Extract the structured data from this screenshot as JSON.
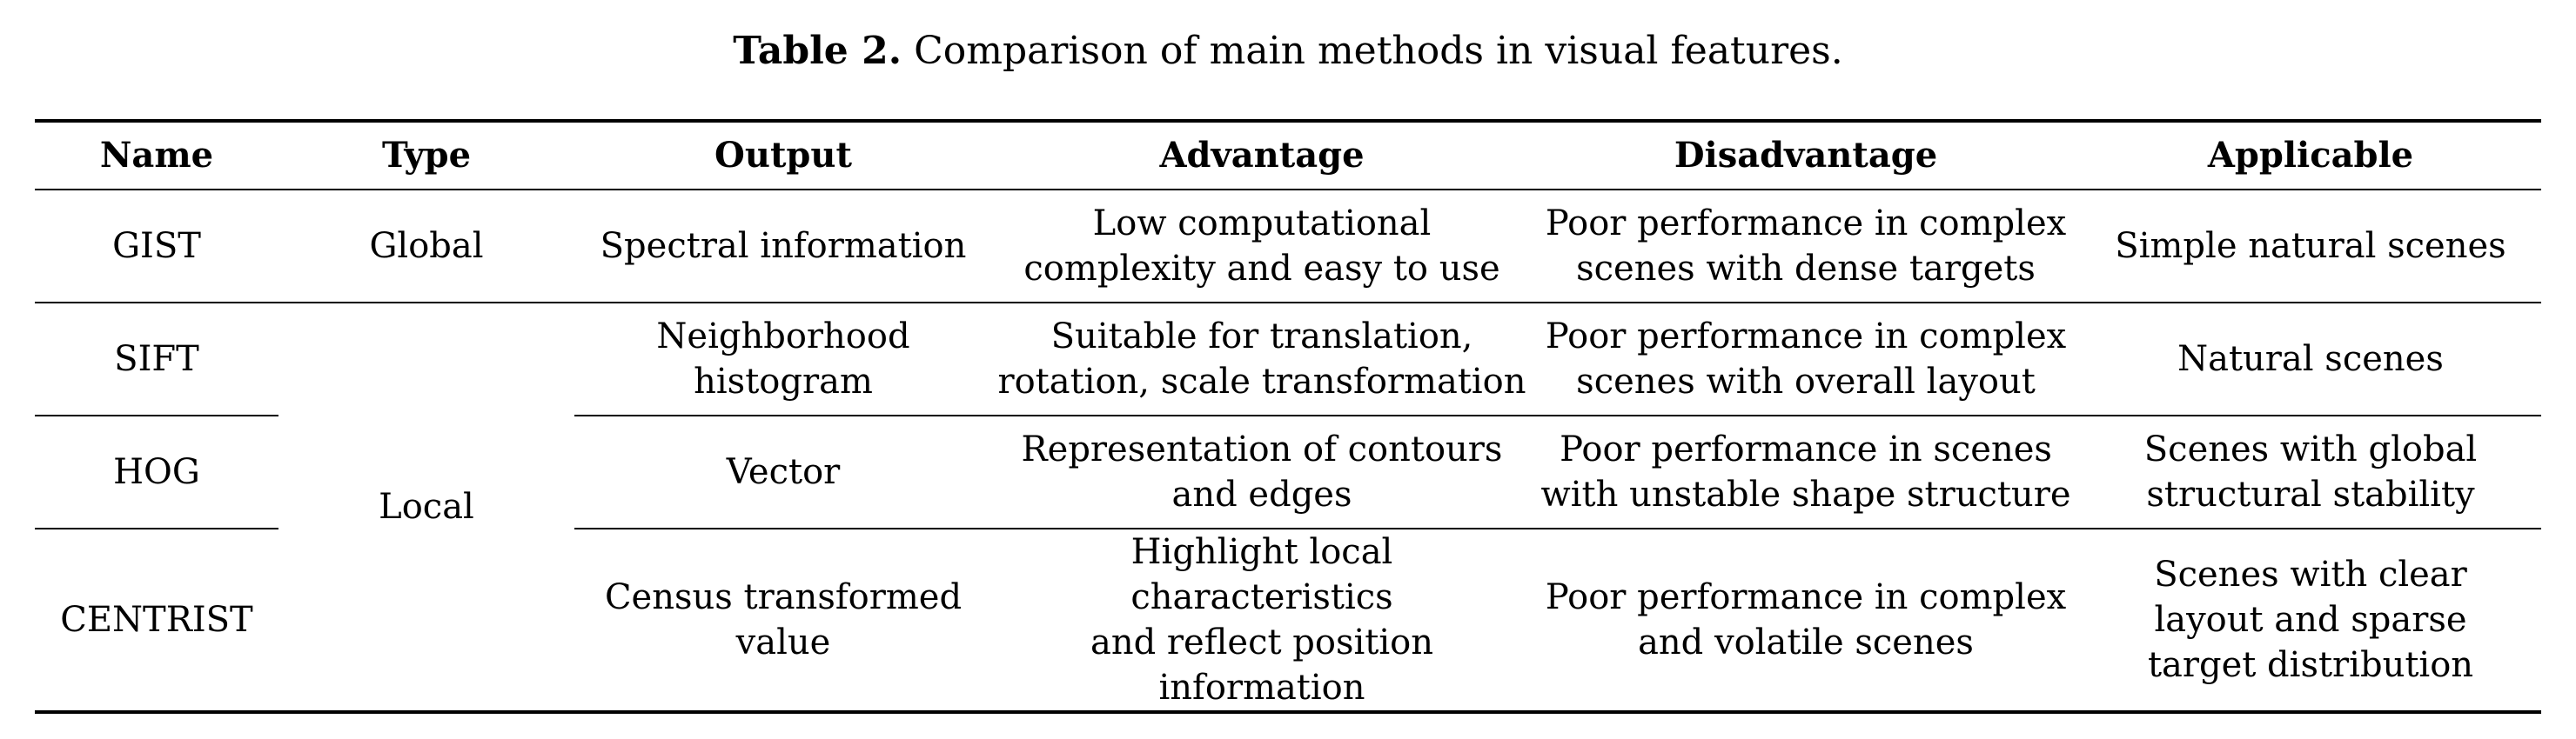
{
  "caption": {
    "label": "Table 2.",
    "text": "Comparison of main methods in visual features."
  },
  "table": {
    "headers": [
      "Name",
      "Type",
      "Output",
      "Advantage",
      "Disadvantage",
      "Applicable"
    ],
    "rows": [
      {
        "name": "GIST",
        "type": "Global",
        "output": [
          "Spectral information"
        ],
        "advantage": [
          "Low computational",
          "complexity and easy to use"
        ],
        "disadvantage": [
          "Poor performance in complex",
          "scenes with dense targets"
        ],
        "applicable": [
          "Simple natural scenes"
        ]
      },
      {
        "name": "SIFT",
        "type": "Local",
        "output": [
          "Neighborhood",
          "histogram"
        ],
        "advantage": [
          "Suitable for translation,",
          "rotation, scale transformation"
        ],
        "disadvantage": [
          "Poor performance in complex",
          "scenes with overall layout"
        ],
        "applicable": [
          "Natural scenes"
        ]
      },
      {
        "name": "HOG",
        "output": [
          "Vector"
        ],
        "advantage": [
          "Representation of contours",
          "and edges"
        ],
        "disadvantage": [
          "Poor performance in scenes",
          "with unstable shape structure"
        ],
        "applicable": [
          "Scenes with global",
          "structural stability"
        ]
      },
      {
        "name": "CENTRIST",
        "output": [
          "Census transformed",
          "value"
        ],
        "advantage": [
          "Highlight local characteristics",
          "and reflect position",
          "information"
        ],
        "disadvantage": [
          "Poor performance in complex",
          "and volatile scenes"
        ],
        "applicable": [
          "Scenes with clear",
          "layout and sparse",
          "target distribution"
        ]
      }
    ]
  }
}
